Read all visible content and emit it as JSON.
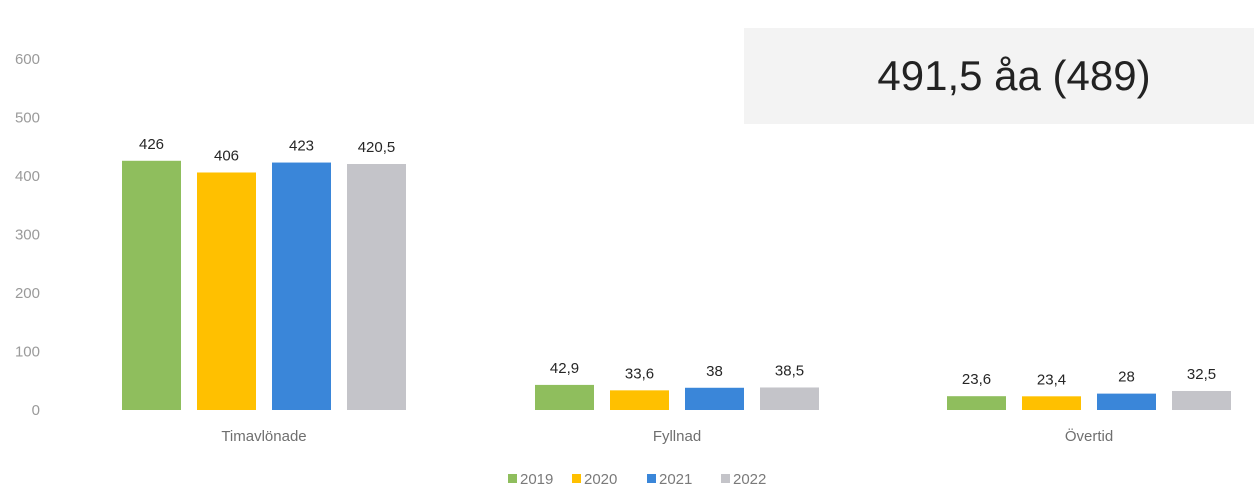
{
  "chart_data": {
    "type": "bar",
    "categories": [
      "Timavlönade",
      "Fyllnad",
      "Övertid"
    ],
    "series": [
      {
        "name": "2019",
        "color": "#8fbe5d",
        "values": [
          426,
          42.9,
          23.6
        ],
        "labels": [
          "426",
          "42,9",
          "23,6"
        ]
      },
      {
        "name": "2020",
        "color": "#ffc000",
        "values": [
          406,
          33.6,
          23.4
        ],
        "labels": [
          "406",
          "33,6",
          "23,4"
        ]
      },
      {
        "name": "2021",
        "color": "#3a86d9",
        "values": [
          423,
          38,
          28
        ],
        "labels": [
          "423",
          "38",
          "28"
        ]
      },
      {
        "name": "2022",
        "color": "#c4c4c9",
        "values": [
          420.5,
          38.5,
          32.5
        ],
        "labels": [
          "420,5",
          "38,5",
          "32,5"
        ]
      }
    ],
    "yticks": [
      "0",
      "100",
      "200",
      "300",
      "400",
      "500",
      "600"
    ],
    "ylim": [
      0,
      600
    ],
    "grid": false,
    "legend_position": "bottom"
  },
  "annotation": {
    "text": "491,5 åa (489)"
  }
}
